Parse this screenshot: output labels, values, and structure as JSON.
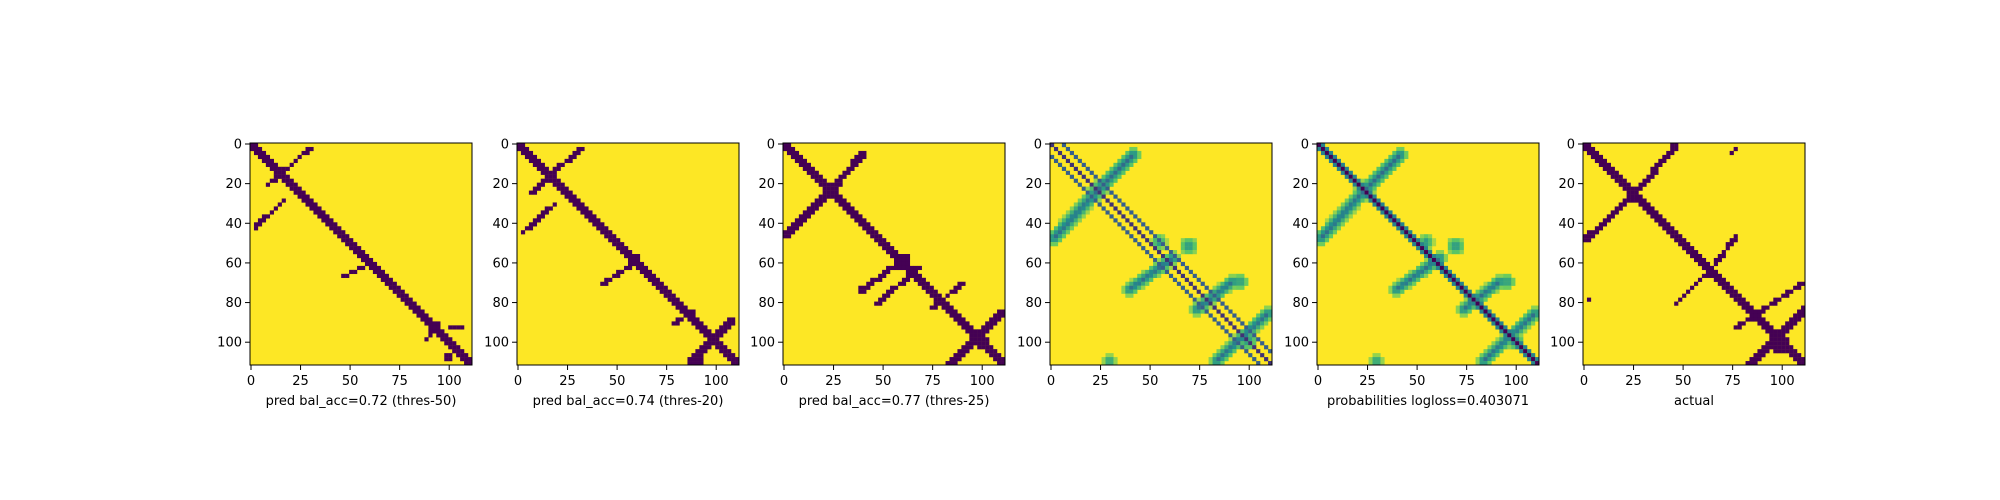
{
  "figure": {
    "colors": {
      "background": "#ffffff",
      "low": "#440154",
      "high": "#fde725"
    }
  },
  "chart_data": [
    {
      "type": "heatmap",
      "title": "",
      "xlabel": "pred bal_acc=0.72 (thres-50)",
      "ylabel": "",
      "size": 112,
      "xlim": [
        0,
        112
      ],
      "ylim": [
        112,
        0
      ],
      "xticks": [
        0,
        25,
        50,
        75,
        100
      ],
      "yticks": [
        0,
        20,
        40,
        60,
        80,
        100
      ],
      "colormap": "viridis",
      "binary": true,
      "grid": false,
      "main_band_halfwidth": 2.2,
      "contact_segments": [
        {
          "x1": 8,
          "y1": 22,
          "x2": 30,
          "y2": 3,
          "w": 1.0
        },
        {
          "x1": 3,
          "y1": 42,
          "x2": 18,
          "y2": 28,
          "w": 1.0
        },
        {
          "x1": 46,
          "y1": 68,
          "x2": 58,
          "y2": 62,
          "w": 1.0
        },
        {
          "x1": 88,
          "y1": 100,
          "x2": 96,
          "y2": 90,
          "w": 1.0
        },
        {
          "x1": 100,
          "y1": 94,
          "x2": 108,
          "y2": 92,
          "w": 1.2
        }
      ],
      "blobs": [
        {
          "x": 100,
          "y": 108,
          "r": 2.0
        },
        {
          "x": 82,
          "y": 100,
          "r": 1.0
        },
        {
          "x": 70,
          "y": 50,
          "r": 0.8
        }
      ]
    },
    {
      "type": "heatmap",
      "title": "",
      "xlabel": "pred bal_acc=0.74 (thres-20)",
      "ylabel": "",
      "size": 112,
      "xlim": [
        0,
        112
      ],
      "ylim": [
        112,
        0
      ],
      "xticks": [
        0,
        25,
        50,
        75,
        100
      ],
      "yticks": [
        0,
        20,
        40,
        60,
        80,
        100
      ],
      "colormap": "viridis",
      "binary": true,
      "grid": false,
      "main_band_halfwidth": 2.4,
      "contact_segments": [
        {
          "x1": 6,
          "y1": 26,
          "x2": 32,
          "y2": 3,
          "w": 1.3
        },
        {
          "x1": 2,
          "y1": 46,
          "x2": 20,
          "y2": 30,
          "w": 1.2
        },
        {
          "x1": 42,
          "y1": 72,
          "x2": 60,
          "y2": 60,
          "w": 1.2
        },
        {
          "x1": 78,
          "y1": 92,
          "x2": 90,
          "y2": 84,
          "w": 1.0
        },
        {
          "x1": 88,
          "y1": 110,
          "x2": 108,
          "y2": 90,
          "w": 1.5
        }
      ],
      "blobs": [
        {
          "x": 60,
          "y": 58,
          "r": 2.0
        },
        {
          "x": 92,
          "y": 110,
          "r": 1.5
        },
        {
          "x": 48,
          "y": 78,
          "r": 0.8
        }
      ]
    },
    {
      "type": "heatmap",
      "title": "",
      "xlabel": "pred bal_acc=0.77 (thres-25)",
      "ylabel": "",
      "size": 112,
      "xlim": [
        0,
        112
      ],
      "ylim": [
        112,
        0
      ],
      "xticks": [
        0,
        25,
        50,
        75,
        100
      ],
      "yticks": [
        0,
        20,
        40,
        60,
        80,
        100
      ],
      "colormap": "viridis",
      "binary": true,
      "grid": false,
      "main_band_halfwidth": 3.0,
      "contact_segments": [
        {
          "x1": 2,
          "y1": 46,
          "x2": 24,
          "y2": 24,
          "w": 1.8
        },
        {
          "x1": 24,
          "y1": 24,
          "x2": 40,
          "y2": 6,
          "w": 1.8
        },
        {
          "x1": 40,
          "y1": 74,
          "x2": 62,
          "y2": 58,
          "w": 1.5
        },
        {
          "x1": 46,
          "y1": 82,
          "x2": 70,
          "y2": 62,
          "w": 1.2
        },
        {
          "x1": 74,
          "y1": 84,
          "x2": 92,
          "y2": 70,
          "w": 1.2
        },
        {
          "x1": 84,
          "y1": 112,
          "x2": 110,
          "y2": 86,
          "w": 2.0
        }
      ],
      "blobs": [
        {
          "x": 24,
          "y": 24,
          "r": 4.0
        },
        {
          "x": 60,
          "y": 62,
          "r": 3.0
        },
        {
          "x": 100,
          "y": 100,
          "r": 4.0
        },
        {
          "x": 66,
          "y": 98,
          "r": 1.0
        },
        {
          "x": 80,
          "y": 108,
          "r": 1.2
        }
      ]
    },
    {
      "type": "heatmap",
      "title": "",
      "xlabel": "",
      "ylabel": "",
      "size": 112,
      "xlim": [
        0,
        112
      ],
      "ylim": [
        112,
        0
      ],
      "xticks": [
        0,
        25,
        50,
        75,
        100
      ],
      "yticks": [
        0,
        20,
        40,
        60,
        80,
        100
      ],
      "colormap": "viridis",
      "binary": false,
      "grid": false,
      "main_band_halfwidth": 0.5,
      "parallel_offsets": [
        6,
        -6
      ],
      "contact_segments": [
        {
          "x1": 2,
          "y1": 48,
          "x2": 24,
          "y2": 24,
          "w": 2.2
        },
        {
          "x1": 24,
          "y1": 24,
          "x2": 42,
          "y2": 6,
          "w": 2.2
        },
        {
          "x1": 40,
          "y1": 74,
          "x2": 62,
          "y2": 58,
          "w": 2.0
        },
        {
          "x1": 74,
          "y1": 84,
          "x2": 92,
          "y2": 70,
          "w": 2.0
        },
        {
          "x1": 84,
          "y1": 110,
          "x2": 110,
          "y2": 86,
          "w": 2.0
        }
      ],
      "blobs": [
        {
          "x": 24,
          "y": 24,
          "r": 4.0
        },
        {
          "x": 55,
          "y": 50,
          "r": 3.0
        },
        {
          "x": 70,
          "y": 52,
          "r": 3.5
        },
        {
          "x": 100,
          "y": 100,
          "r": 3.5
        },
        {
          "x": 96,
          "y": 70,
          "r": 3.0
        },
        {
          "x": 30,
          "y": 110,
          "r": 2.5
        }
      ]
    },
    {
      "type": "heatmap",
      "title": "",
      "xlabel": "probabilities logloss=0.403071",
      "ylabel": "",
      "size": 112,
      "xlim": [
        0,
        112
      ],
      "ylim": [
        112,
        0
      ],
      "xticks": [
        0,
        25,
        50,
        75,
        100
      ],
      "yticks": [
        0,
        20,
        40,
        60,
        80,
        100
      ],
      "colormap": "viridis",
      "binary": false,
      "grid": false,
      "main_band_halfwidth": 3.0,
      "contact_segments": [
        {
          "x1": 2,
          "y1": 48,
          "x2": 24,
          "y2": 24,
          "w": 2.2
        },
        {
          "x1": 24,
          "y1": 24,
          "x2": 42,
          "y2": 6,
          "w": 2.2
        },
        {
          "x1": 40,
          "y1": 74,
          "x2": 62,
          "y2": 58,
          "w": 2.0
        },
        {
          "x1": 74,
          "y1": 84,
          "x2": 92,
          "y2": 70,
          "w": 2.0
        },
        {
          "x1": 84,
          "y1": 110,
          "x2": 110,
          "y2": 86,
          "w": 2.0
        }
      ],
      "blobs": [
        {
          "x": 24,
          "y": 24,
          "r": 4.0
        },
        {
          "x": 55,
          "y": 50,
          "r": 3.0
        },
        {
          "x": 70,
          "y": 52,
          "r": 3.5
        },
        {
          "x": 100,
          "y": 100,
          "r": 3.5
        },
        {
          "x": 96,
          "y": 70,
          "r": 3.0
        },
        {
          "x": 30,
          "y": 110,
          "r": 2.5
        }
      ]
    },
    {
      "type": "heatmap",
      "title": "",
      "xlabel": "actual",
      "ylabel": "",
      "size": 112,
      "xlim": [
        0,
        112
      ],
      "ylim": [
        112,
        0
      ],
      "xticks": [
        0,
        25,
        50,
        75,
        100
      ],
      "yticks": [
        0,
        20,
        40,
        60,
        80,
        100
      ],
      "colormap": "viridis",
      "binary": true,
      "grid": false,
      "main_band_halfwidth": 0,
      "contact_segments": [
        {
          "x1": 2,
          "y1": 2,
          "x2": 112,
          "y2": 112,
          "w": 1.6
        },
        {
          "x1": 2,
          "y1": 48,
          "x2": 26,
          "y2": 26,
          "w": 1.6
        },
        {
          "x1": 26,
          "y1": 26,
          "x2": 46,
          "y2": 2,
          "w": 1.6
        },
        {
          "x1": 46,
          "y1": 82,
          "x2": 66,
          "y2": 62,
          "w": 1.4
        },
        {
          "x1": 66,
          "y1": 62,
          "x2": 78,
          "y2": 46,
          "w": 1.2
        },
        {
          "x1": 76,
          "y1": 94,
          "x2": 112,
          "y2": 70,
          "w": 1.3
        },
        {
          "x1": 84,
          "y1": 112,
          "x2": 112,
          "y2": 84,
          "w": 1.6
        },
        {
          "x1": 74,
          "y1": 6,
          "x2": 78,
          "y2": 2,
          "w": 1.0
        }
      ],
      "blobs": [
        {
          "x": 26,
          "y": 26,
          "r": 2.5
        },
        {
          "x": 64,
          "y": 66,
          "r": 2.5
        },
        {
          "x": 100,
          "y": 102,
          "r": 5.0
        },
        {
          "x": 3,
          "y": 79,
          "r": 1.8
        }
      ]
    }
  ]
}
